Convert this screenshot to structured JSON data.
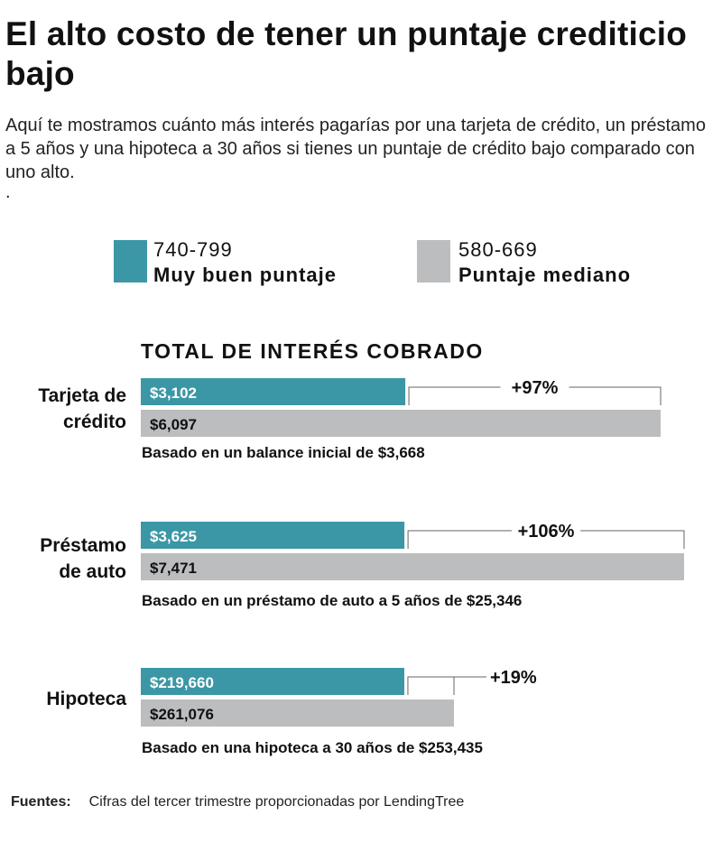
{
  "header": {
    "title": "El alto costo de tener un puntaje crediticio bajo",
    "subtitle": "Aquí te mostramos cuánto más interés pagarías por una tarjeta de crédito, un préstamo a 5 años y una hipoteca a 30 años si tienes un puntaje de crédito bajo comparado con uno alto.",
    "stray_dot": "."
  },
  "legend": [
    {
      "range": "740-799",
      "label": "Muy buen puntaje",
      "color": "#3b97a6"
    },
    {
      "range": "580-669",
      "label": "Puntaje mediano",
      "color": "#bcbdbf"
    }
  ],
  "chart_heading": "TOTAL DE INTERÉS COBRADO",
  "chart_data": {
    "type": "bar",
    "orientation": "horizontal",
    "categories": [
      "Tarjeta de crédito",
      "Préstamo de auto",
      "Hipoteca"
    ],
    "series": [
      {
        "name": "740-799 Muy buen puntaje",
        "color": "#3b97a6",
        "values": [
          3102,
          3625,
          219660
        ],
        "labels": [
          "$3,102",
          "$3,625",
          "$219,660"
        ]
      },
      {
        "name": "580-669 Puntaje mediano",
        "color": "#bcbdbf",
        "values": [
          6097,
          7471,
          261076
        ],
        "labels": [
          "$6,097",
          "$7,471",
          "$261,076"
        ]
      }
    ],
    "differences": [
      "+97%",
      "+106%",
      "+19%"
    ],
    "notes": [
      "Basado en un balance inicial de $3,668",
      "Basado en un préstamo de auto a 5 años de  $25,346",
      "Basado en una hipoteca a 30 años de  $253,435"
    ]
  },
  "footer": {
    "label": "Fuentes:",
    "text": "Cifras del tercer trimestre proporcionadas por LendingTree"
  }
}
